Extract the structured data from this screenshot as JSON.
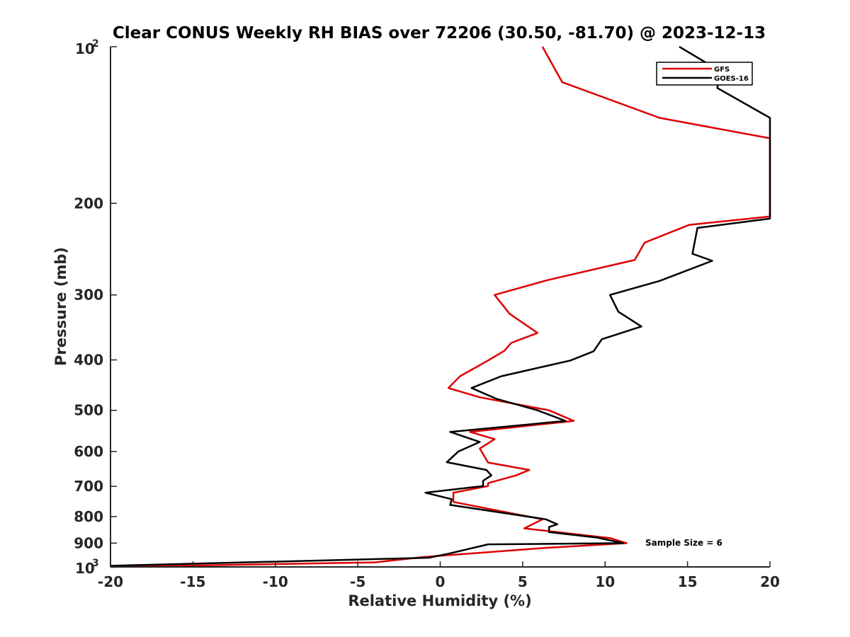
{
  "chart_data": {
    "type": "line",
    "title": "Clear CONUS Weekly RH BIAS over 72206 (30.50, -81.70) @ 2023-12-13",
    "xlabel": "Relative Humidity (%)",
    "ylabel": "Pressure (mb)",
    "xlim": [
      -20,
      20
    ],
    "ylim": [
      100,
      1000
    ],
    "y_scale": "log",
    "y_reversed": true,
    "x_ticks": [
      -20,
      -15,
      -10,
      -5,
      0,
      5,
      10,
      15,
      20
    ],
    "x_tick_labels": [
      "-20",
      "-15",
      "-10",
      "-5",
      "0",
      "5",
      "10",
      "15",
      "20"
    ],
    "y_ticks": [
      200,
      300,
      400,
      500,
      600,
      700,
      800,
      900
    ],
    "y_tick_labels": [
      "200",
      "300",
      "400",
      "500",
      "600",
      "700",
      "800",
      "900"
    ],
    "y_top_label": {
      "base": "10",
      "exp": "2"
    },
    "y_bottom_label": {
      "base": "10",
      "exp": "3"
    },
    "legend_position": "top-right",
    "grid": false,
    "annotation": "Sample Size = 6",
    "series": [
      {
        "name": "GFS",
        "color": "#dd0000",
        "points": [
          [
            6.2,
            100
          ],
          [
            7.4,
            117
          ],
          [
            13.3,
            137
          ],
          [
            20.0,
            150
          ],
          [
            20.0,
            212
          ],
          [
            15.1,
            220
          ],
          [
            12.4,
            238
          ],
          [
            11.8,
            257
          ],
          [
            6.5,
            281
          ],
          [
            3.3,
            300
          ],
          [
            4.2,
            326
          ],
          [
            5.9,
            355
          ],
          [
            4.3,
            371
          ],
          [
            3.9,
            384
          ],
          [
            2.9,
            401
          ],
          [
            1.2,
            430
          ],
          [
            0.5,
            453
          ],
          [
            2.4,
            472
          ],
          [
            6.6,
            500
          ],
          [
            8.1,
            524
          ],
          [
            1.8,
            550
          ],
          [
            3.3,
            568
          ],
          [
            2.4,
            592
          ],
          [
            2.9,
            630
          ],
          [
            5.4,
            651
          ],
          [
            4.6,
            667
          ],
          [
            2.9,
            690
          ],
          [
            2.9,
            699
          ],
          [
            0.8,
            720
          ],
          [
            0.8,
            737
          ],
          [
            0.8,
            750
          ],
          [
            6.2,
            810
          ],
          [
            5.1,
            843
          ],
          [
            10.3,
            880
          ],
          [
            11.3,
            900
          ],
          [
            6.2,
            920
          ],
          [
            -1.0,
            957
          ],
          [
            -4.0,
            980
          ],
          [
            -20.0,
            1000
          ]
        ]
      },
      {
        "name": "GOES-16",
        "color": "#000000",
        "points": [
          [
            14.5,
            100
          ],
          [
            17.1,
            112
          ],
          [
            16.8,
            120
          ],
          [
            20.0,
            137
          ],
          [
            20.0,
            214
          ],
          [
            15.6,
            223
          ],
          [
            15.3,
            250
          ],
          [
            16.5,
            258
          ],
          [
            13.3,
            282
          ],
          [
            10.3,
            300
          ],
          [
            10.8,
            323
          ],
          [
            12.2,
            345
          ],
          [
            9.8,
            365
          ],
          [
            9.3,
            385
          ],
          [
            7.9,
            401
          ],
          [
            3.7,
            430
          ],
          [
            1.9,
            453
          ],
          [
            3.4,
            475
          ],
          [
            5.9,
            500
          ],
          [
            7.6,
            524
          ],
          [
            0.6,
            550
          ],
          [
            2.4,
            575
          ],
          [
            1.1,
            600
          ],
          [
            0.4,
            629
          ],
          [
            2.8,
            651
          ],
          [
            3.1,
            667
          ],
          [
            2.6,
            683
          ],
          [
            2.6,
            699
          ],
          [
            -0.9,
            720
          ],
          [
            0.7,
            741
          ],
          [
            0.6,
            760
          ],
          [
            6.4,
            810
          ],
          [
            7.1,
            828
          ],
          [
            6.6,
            838
          ],
          [
            6.6,
            857
          ],
          [
            9.5,
            878
          ],
          [
            11.1,
            900
          ],
          [
            2.9,
            905
          ],
          [
            0.5,
            943
          ],
          [
            -0.7,
            960
          ],
          [
            -20.0,
            995
          ]
        ]
      }
    ]
  }
}
